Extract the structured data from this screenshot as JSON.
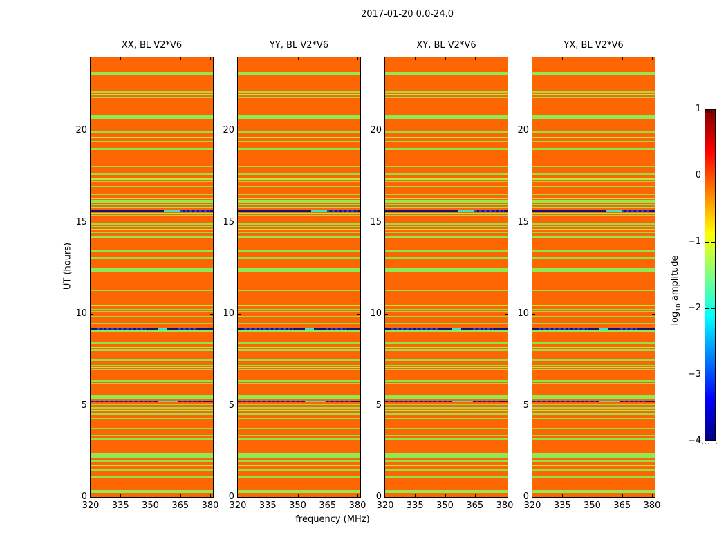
{
  "figure": {
    "title": "2017-01-20 0.0-24.0"
  },
  "chart_data": {
    "type": "heatmap",
    "title": "2017-01-20 0.0-24.0",
    "xlabel": "frequency (MHz)",
    "ylabel": "UT (hours)",
    "x_range_mhz": [
      320,
      382.5
    ],
    "x_ticks": [
      320,
      335,
      350,
      365,
      380
    ],
    "y_range_hours": [
      0,
      24
    ],
    "y_ticks": [
      0,
      5,
      10,
      15,
      20
    ],
    "panels": [
      {
        "label": "XX, BL V2*V6"
      },
      {
        "label": "YY, BL V2*V6"
      },
      {
        "label": "XY, BL V2*V6"
      },
      {
        "label": "YX, BL V2*V6"
      }
    ],
    "colorbar": {
      "label_prefix": "log",
      "label_sub": "10",
      "label_suffix": " amplitude",
      "tick_labels": [
        "1",
        "0",
        "−1",
        "−2",
        "−3",
        "−4"
      ],
      "tick_values": [
        1,
        0,
        -1,
        -2,
        -3,
        -4
      ],
      "vmin": -4,
      "vmax": 1,
      "colormap": "jet"
    },
    "background_amplitude_log10": 0,
    "stripe_amplitude_log10": -1.5,
    "colors": {
      "bg": "#fd6602",
      "g": "#8de24d",
      "G": "#8fe955",
      "y": "#c8e23c",
      "dark": "#15127d",
      "cyan": "#3ce3cb",
      "dash": "#2c3fd8",
      "jet_stops": [
        "#000083",
        "#0000ff",
        "#00ffff",
        "#ffff00",
        "#ff0000",
        "#800000"
      ]
    },
    "stripes": [
      {
        "t": 23.21,
        "d": 0.19,
        "c": "G"
      },
      {
        "t": 22.16,
        "d": 0.075,
        "c": "g"
      },
      {
        "t": 22.01,
        "d": 0.056,
        "c": "y"
      },
      {
        "t": 21.85,
        "d": 0.075,
        "c": "g"
      },
      {
        "t": 20.84,
        "d": 0.19,
        "c": "G"
      },
      {
        "t": 19.97,
        "d": 0.113,
        "c": "g"
      },
      {
        "t": 19.67,
        "d": 0.056,
        "c": "y"
      },
      {
        "t": 19.45,
        "d": 0.075,
        "c": "g"
      },
      {
        "t": 19.07,
        "d": 0.113,
        "c": "g"
      },
      {
        "t": 18.09,
        "d": 0.056,
        "c": "g"
      },
      {
        "t": 17.68,
        "d": 0.113,
        "c": "g"
      },
      {
        "t": 17.38,
        "d": 0.075,
        "c": "y"
      },
      {
        "t": 17.25,
        "d": 0.056,
        "c": "g"
      },
      {
        "t": 17.0,
        "d": 0.113,
        "c": "g"
      },
      {
        "t": 16.55,
        "d": 0.075,
        "c": "g"
      },
      {
        "t": 16.33,
        "d": 0.075,
        "c": "y"
      },
      {
        "t": 16.19,
        "d": 0.15,
        "c": "G"
      },
      {
        "t": 15.99,
        "d": 0.075,
        "c": "g"
      },
      {
        "t": 15.86,
        "d": 0.094,
        "c": "G"
      },
      {
        "t": 15.65,
        "d": 0.094,
        "c": "dark",
        "segs": [
          {
            "x0": 0.6,
            "x1": 0.73,
            "c": "cyan"
          },
          {
            "x0": 0.73,
            "x1": 0.97,
            "c": "dash"
          }
        ]
      },
      {
        "t": 15.52,
        "d": 0.075,
        "c": "y"
      },
      {
        "t": 15.4,
        "d": 0.056,
        "c": "g"
      },
      {
        "t": 14.93,
        "d": 0.075,
        "c": "g"
      },
      {
        "t": 14.78,
        "d": 0.056,
        "c": "g"
      },
      {
        "t": 14.63,
        "d": 0.056,
        "c": "y"
      },
      {
        "t": 14.48,
        "d": 0.056,
        "c": "g"
      },
      {
        "t": 14.22,
        "d": 0.113,
        "c": "G"
      },
      {
        "t": 13.5,
        "d": 0.094,
        "c": "g"
      },
      {
        "t": 13.09,
        "d": 0.075,
        "c": "g"
      },
      {
        "t": 12.49,
        "d": 0.188,
        "c": "G"
      },
      {
        "t": 11.32,
        "d": 0.075,
        "c": "g"
      },
      {
        "t": 10.61,
        "d": 0.056,
        "c": "g"
      },
      {
        "t": 10.48,
        "d": 0.056,
        "c": "y"
      },
      {
        "t": 10.27,
        "d": 0.056,
        "c": "g"
      },
      {
        "t": 10.16,
        "d": 0.038,
        "c": "g"
      },
      {
        "t": 9.89,
        "d": 0.075,
        "c": "g"
      },
      {
        "t": 9.52,
        "d": 0.075,
        "c": "g"
      },
      {
        "t": 9.22,
        "d": 0.075,
        "c": "dark",
        "segs": [
          {
            "x0": 0.05,
            "x1": 0.45,
            "c": "dash"
          },
          {
            "x0": 0.55,
            "x1": 0.62,
            "c": "cyan"
          },
          {
            "x0": 0.72,
            "x1": 0.88,
            "c": "dash"
          }
        ]
      },
      {
        "t": 9.12,
        "d": 0.113,
        "c": "G"
      },
      {
        "t": 8.46,
        "d": 0.075,
        "c": "g"
      },
      {
        "t": 8.2,
        "d": 0.056,
        "c": "y"
      },
      {
        "t": 8.07,
        "d": 0.094,
        "c": "g"
      },
      {
        "t": 7.52,
        "d": 0.075,
        "c": "g"
      },
      {
        "t": 7.22,
        "d": 0.056,
        "c": "g"
      },
      {
        "t": 7.11,
        "d": 0.056,
        "c": "y"
      },
      {
        "t": 7.0,
        "d": 0.038,
        "c": "g"
      },
      {
        "t": 6.39,
        "d": 0.094,
        "c": "g"
      },
      {
        "t": 6.24,
        "d": 0.075,
        "c": "g"
      },
      {
        "t": 5.57,
        "d": 0.207,
        "c": "G"
      },
      {
        "t": 5.25,
        "d": 0.094,
        "c": "dark",
        "segs": [
          {
            "x0": 0.02,
            "x1": 0.52,
            "c": "dash"
          },
          {
            "x0": 0.55,
            "x1": 0.72,
            "c": "cyan"
          },
          {
            "x0": 0.74,
            "x1": 0.92,
            "c": "dash"
          }
        ]
      },
      {
        "t": 5.08,
        "d": 0.056,
        "c": "g"
      },
      {
        "t": 4.89,
        "d": 0.056,
        "c": "g"
      },
      {
        "t": 4.74,
        "d": 0.056,
        "c": "y"
      },
      {
        "t": 4.55,
        "d": 0.056,
        "c": "g"
      },
      {
        "t": 4.33,
        "d": 0.056,
        "c": "g"
      },
      {
        "t": 3.76,
        "d": 0.075,
        "c": "g"
      },
      {
        "t": 3.39,
        "d": 0.056,
        "c": "g"
      },
      {
        "t": 3.2,
        "d": 0.075,
        "c": "g"
      },
      {
        "t": 2.37,
        "d": 0.226,
        "c": "G"
      },
      {
        "t": 1.99,
        "d": 0.056,
        "c": "g"
      },
      {
        "t": 1.77,
        "d": 0.056,
        "c": "y"
      },
      {
        "t": 1.5,
        "d": 0.075,
        "c": "g"
      },
      {
        "t": 1.13,
        "d": 0.075,
        "c": "g"
      },
      {
        "t": 0.38,
        "d": 0.15,
        "c": "G"
      }
    ]
  }
}
